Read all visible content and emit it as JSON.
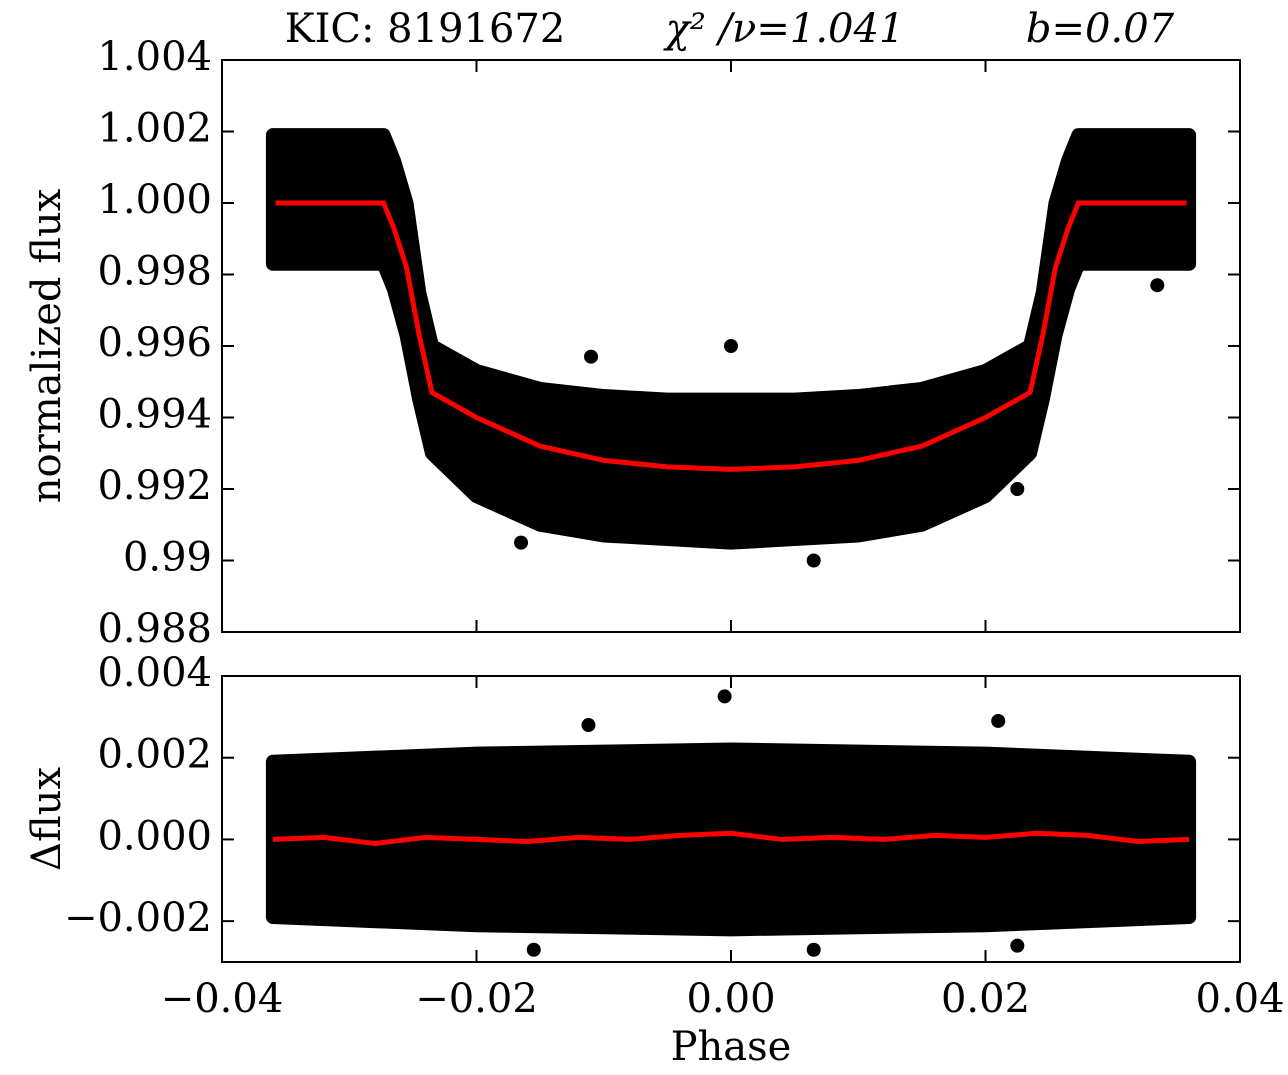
{
  "chart_data": [
    {
      "type": "scatter",
      "title": [
        "KIC:  8191672",
        "χ² /ν=1.041",
        "b=0.07"
      ],
      "ylabel": "normalized  flux",
      "color": "#000000",
      "xlim": [
        -0.04,
        0.04
      ],
      "xticks": [
        -0.04,
        -0.02,
        0,
        0.02,
        0.04
      ],
      "ylim": [
        0.988,
        1.004
      ],
      "yticks": [
        0.988,
        0.99,
        0.992,
        0.994,
        0.996,
        0.998,
        {
          "value": 1.0,
          "label": "1.000"
        },
        1.002,
        1.004
      ],
      "band": {
        "x": [
          -0.036,
          -0.0273,
          -0.0265,
          -0.0255,
          -0.0245,
          -0.0235,
          -0.02,
          -0.015,
          -0.01,
          -0.005,
          0,
          0.005,
          0.01,
          0.015,
          0.02,
          0.0235,
          0.0245,
          0.0255,
          0.0265,
          0.0273,
          0.036
        ],
        "upper": [
          1.0019,
          1.0019,
          1.0012,
          1.0,
          0.9975,
          0.996,
          0.9953,
          0.9948,
          0.9946,
          0.9945,
          0.9945,
          0.9945,
          0.9946,
          0.9948,
          0.9953,
          0.996,
          0.9975,
          1.0,
          1.0012,
          1.0019,
          1.0019
        ],
        "lower": [
          0.9983,
          0.9983,
          0.9976,
          0.9963,
          0.9945,
          0.993,
          0.9918,
          0.991,
          0.9907,
          0.9906,
          0.9905,
          0.9906,
          0.9907,
          0.991,
          0.9918,
          0.993,
          0.9945,
          0.9963,
          0.9976,
          0.9983,
          0.9983
        ]
      },
      "points": {
        "x": [
          0.0,
          0.0065,
          -0.0165,
          0.0225,
          0.0335,
          -0.011
        ],
        "y": [
          0.996,
          0.99,
          0.9905,
          0.992,
          0.9977,
          0.9957
        ]
      },
      "model": {
        "color": "#ff0000",
        "x": [
          -0.0358,
          -0.0273,
          -0.0265,
          -0.0255,
          -0.0245,
          -0.0235,
          -0.02,
          -0.015,
          -0.01,
          -0.005,
          0,
          0.005,
          0.01,
          0.015,
          0.02,
          0.0235,
          0.0245,
          0.0255,
          0.0265,
          0.0273,
          0.0358
        ],
        "y": [
          1.0,
          1.0,
          0.9993,
          0.9982,
          0.9963,
          0.9947,
          0.994,
          0.9932,
          0.9928,
          0.99262,
          0.99255,
          0.99262,
          0.9928,
          0.9932,
          0.994,
          0.9947,
          0.9963,
          0.9982,
          0.9993,
          1.0,
          1.0
        ]
      }
    },
    {
      "type": "scatter",
      "ylabel": "Δflux",
      "xlabel": "Phase",
      "color": "#000000",
      "xlim": [
        -0.04,
        0.04
      ],
      "xticks": [
        {
          "value": -0.04,
          "label": "−0.04"
        },
        {
          "value": -0.02,
          "label": "−0.02"
        },
        {
          "value": 0,
          "label": "0.00"
        },
        0.02,
        0.04
      ],
      "ylim": [
        -0.003,
        0.004
      ],
      "yticks": [
        {
          "value": -0.002,
          "label": "−0.002"
        },
        {
          "value": 0,
          "label": "0.000"
        },
        0.002,
        0.004
      ],
      "band": {
        "x": [
          -0.036,
          -0.02,
          0,
          0.02,
          0.036
        ],
        "upper": [
          0.0019,
          0.0021,
          0.0022,
          0.0021,
          0.0019
        ],
        "lower": [
          -0.0019,
          -0.0021,
          -0.0022,
          -0.0021,
          -0.0019
        ]
      },
      "points": {
        "x": [
          -0.0005,
          -0.0112,
          0.021,
          0.0065,
          -0.0155,
          0.0225
        ],
        "y": [
          0.0035,
          0.0028,
          0.0029,
          -0.0027,
          -0.0027,
          -0.0026
        ]
      },
      "model": {
        "color": "#ff0000",
        "x": [
          -0.036,
          -0.032,
          -0.028,
          -0.024,
          -0.02,
          -0.016,
          -0.012,
          -0.008,
          -0.004,
          0,
          0.004,
          0.008,
          0.012,
          0.016,
          0.02,
          0.024,
          0.028,
          0.032,
          0.036
        ],
        "y": [
          0,
          5e-05,
          -0.0001,
          5e-05,
          0,
          -5e-05,
          5e-05,
          0,
          0.0001,
          0.00015,
          0,
          5e-05,
          0,
          0.0001,
          5e-05,
          0.00015,
          0.0001,
          -5e-05,
          0
        ]
      }
    }
  ]
}
